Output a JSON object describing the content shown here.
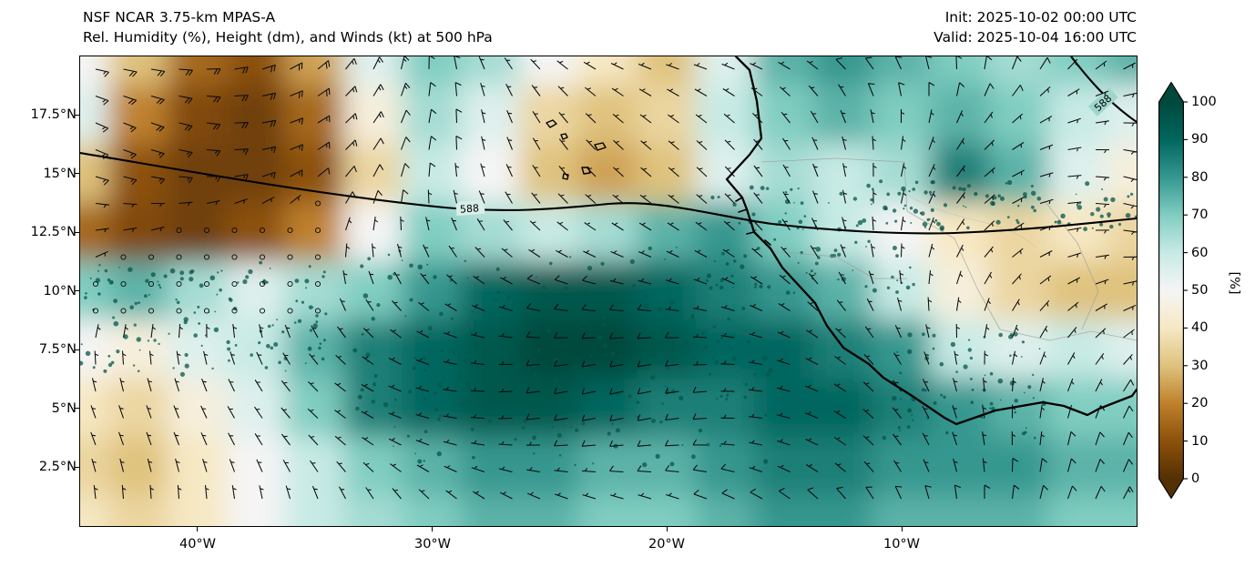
{
  "header": {
    "title_line1": "NSF NCAR 3.75-km MPAS-A",
    "title_line2": "Rel. Humidity (%), Height (dm), and Winds (kt) at 500 hPa",
    "init_label": "Init: 2025-10-02 00:00 UTC",
    "valid_label": "Valid: 2025-10-04 16:00 UTC"
  },
  "chart_data": {
    "type": "heatmap",
    "model": "NSF NCAR 3.75-km MPAS-A",
    "title": "Rel. Humidity (%), Height (dm), and Winds (kt) at 500 hPa",
    "init_time": "2025-10-02 00:00 UTC",
    "valid_time": "2025-10-04 16:00 UTC",
    "level_hPa": 500,
    "overlays": [
      "relative humidity shading (%)",
      "geopotential height contours (dm)",
      "wind barbs (kt)"
    ],
    "x_axis": {
      "ticks": [
        "40°W",
        "30°W",
        "20°W",
        "10°W"
      ],
      "lon_range_degW": [
        45,
        0
      ]
    },
    "y_axis": {
      "ticks": [
        "17.5°N",
        "15°N",
        "12.5°N",
        "10°N",
        "7.5°N",
        "5°N",
        "2.5°N"
      ],
      "lat_range_degN": [
        0,
        20
      ]
    },
    "colorbar": {
      "label": "[%]",
      "ticks": [
        0,
        10,
        20,
        30,
        40,
        50,
        60,
        70,
        80,
        90,
        100
      ],
      "extend": "both",
      "colormap": "BrBG brown-white-teal",
      "colormap_stops": [
        "#543005",
        "#8c510a",
        "#bf812d",
        "#dfc27d",
        "#f6e8c3",
        "#f5f5f5",
        "#c7eae5",
        "#80cdc1",
        "#35978f",
        "#01665e",
        "#00493c"
      ]
    },
    "contour_label": "588",
    "grid": {
      "lons_degW": [
        45,
        42.5,
        40,
        37.5,
        35,
        32.5,
        30,
        27.5,
        25,
        22.5,
        20,
        17.5,
        15,
        12.5,
        10,
        7.5,
        5,
        2.5,
        0
      ],
      "lats_degN": [
        20,
        17.5,
        15,
        12.5,
        10,
        7.5,
        5,
        2.5,
        0
      ],
      "rh_percent": [
        [
          50,
          30,
          15,
          10,
          25,
          55,
          70,
          65,
          50,
          40,
          30,
          55,
          75,
          80,
          75,
          70,
          65,
          70,
          75
        ],
        [
          55,
          20,
          8,
          5,
          15,
          45,
          65,
          55,
          35,
          30,
          35,
          60,
          70,
          75,
          70,
          75,
          70,
          60,
          55
        ],
        [
          30,
          10,
          5,
          5,
          10,
          35,
          60,
          50,
          30,
          25,
          30,
          55,
          65,
          60,
          65,
          85,
          75,
          55,
          45
        ],
        [
          15,
          8,
          5,
          10,
          20,
          50,
          70,
          65,
          60,
          65,
          75,
          80,
          70,
          60,
          50,
          40,
          35,
          40,
          35
        ],
        [
          70,
          75,
          65,
          55,
          65,
          70,
          80,
          90,
          95,
          95,
          90,
          85,
          80,
          75,
          60,
          45,
          35,
          30,
          30
        ],
        [
          50,
          45,
          55,
          60,
          75,
          85,
          90,
          95,
          100,
          100,
          95,
          90,
          90,
          85,
          80,
          60,
          55,
          60,
          55
        ],
        [
          40,
          35,
          45,
          55,
          70,
          85,
          90,
          95,
          95,
          90,
          85,
          85,
          90,
          90,
          85,
          80,
          75,
          70,
          70
        ],
        [
          35,
          30,
          40,
          50,
          60,
          70,
          75,
          80,
          80,
          75,
          75,
          80,
          85,
          85,
          80,
          80,
          80,
          75,
          75
        ],
        [
          40,
          35,
          40,
          50,
          60,
          65,
          70,
          75,
          75,
          70,
          70,
          75,
          80,
          80,
          75,
          75,
          75,
          70,
          70
        ]
      ]
    }
  }
}
